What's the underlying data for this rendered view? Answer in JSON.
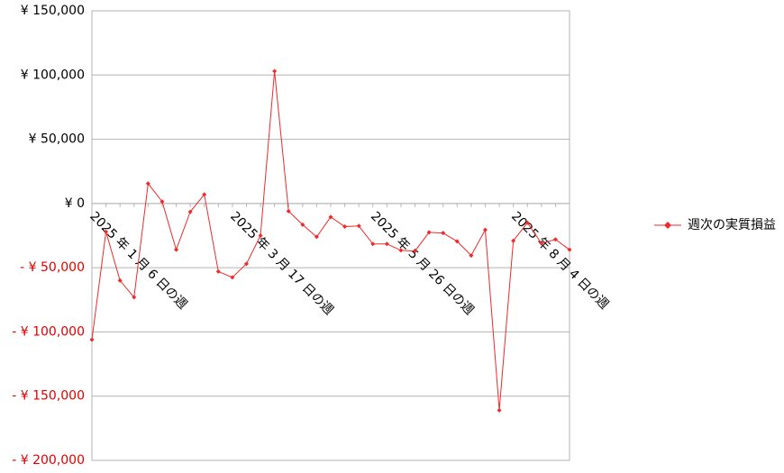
{
  "chart_data": {
    "type": "line",
    "categories": [
      "2025 年 1 月 6 日の週",
      null,
      null,
      null,
      null,
      null,
      null,
      null,
      null,
      null,
      "2025 年 3 月 17 日の週",
      null,
      null,
      null,
      null,
      null,
      null,
      null,
      null,
      null,
      "2025 年 5 月 26 日の週",
      null,
      null,
      null,
      null,
      null,
      null,
      null,
      null,
      null,
      "2025 年 8 月 4 日の週",
      null,
      null,
      null,
      null
    ],
    "series": [
      {
        "name": "週次の実質損益",
        "color": "#ee2a2a",
        "values": [
          -106000,
          -22000,
          -60000,
          -73000,
          15500,
          1500,
          -36000,
          -6500,
          7000,
          -53000,
          -57500,
          -47000,
          -25000,
          103000,
          -6000,
          -16500,
          -26000,
          -10500,
          -18000,
          -17500,
          -31500,
          -31500,
          -36500,
          -37000,
          -22500,
          -23000,
          -29500,
          -40500,
          -20500,
          -161000,
          -29000,
          -15000,
          -31000,
          -28000,
          -36000
        ]
      }
    ],
    "ylim": [
      -200000,
      150000
    ],
    "yticks": [
      {
        "value": -200000,
        "label": "- ¥ 200,000"
      },
      {
        "value": -150000,
        "label": "- ¥ 150,000"
      },
      {
        "value": -100000,
        "label": "- ¥ 100,000"
      },
      {
        "value": -50000,
        "label": "- ¥ 50,000"
      },
      {
        "value": 0,
        "label": "¥ 0"
      },
      {
        "value": 50000,
        "label": "¥ 50,000"
      },
      {
        "value": 100000,
        "label": "¥ 100,000"
      },
      {
        "value": 150000,
        "label": "¥ 150,000"
      }
    ],
    "grid": true,
    "legend": "right",
    "negative_tick_color": "#e00000",
    "tick_color": "#000000"
  }
}
